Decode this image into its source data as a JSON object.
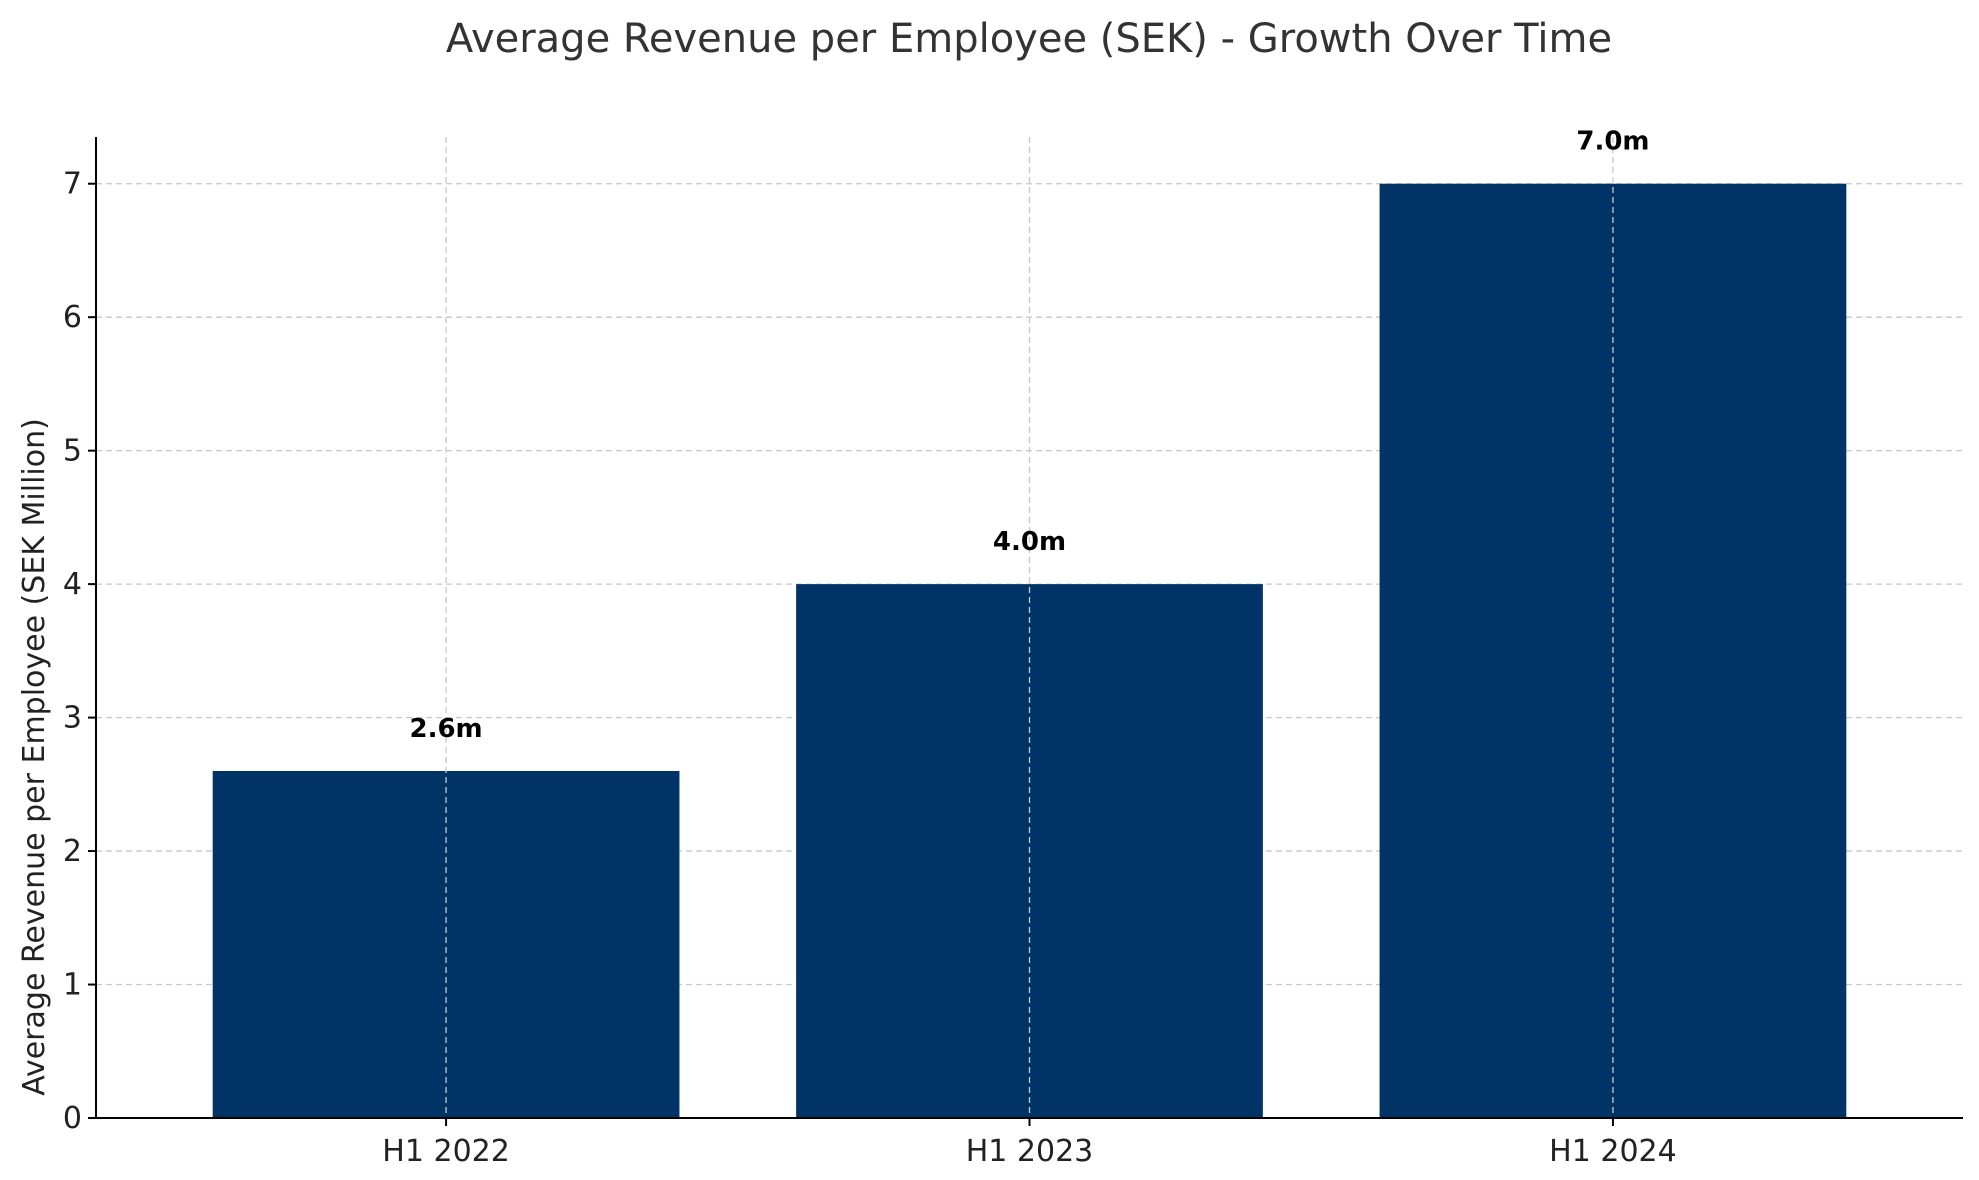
{
  "chart_data": {
    "type": "bar",
    "title": "Average Revenue per Employee (SEK) - Growth Over Time",
    "xlabel": "",
    "ylabel": "Average Revenue per Employee (SEK Million)",
    "categories": [
      "H1 2022",
      "H1 2023",
      "H1 2024"
    ],
    "values": [
      2.6,
      4.0,
      7.0
    ],
    "data_labels": [
      "2.6m",
      "4.0m",
      "7.0m"
    ],
    "ylim": [
      0,
      7.35
    ],
    "yticks": [
      0,
      1,
      2,
      3,
      4,
      5,
      6,
      7
    ],
    "ytick_labels": [
      "0",
      "1",
      "2",
      "3",
      "4",
      "5",
      "6",
      "7"
    ],
    "grid": true,
    "colors": {
      "bar": "#003366",
      "title": "#333333",
      "grid": "#c8c8c8"
    }
  }
}
